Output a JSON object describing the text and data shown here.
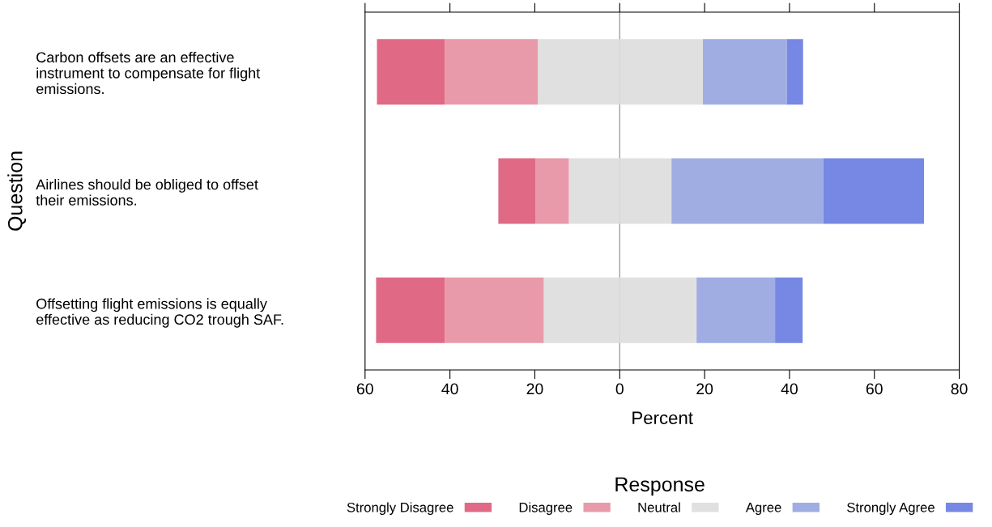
{
  "chart_data": {
    "type": "bar",
    "orientation": "horizontal",
    "stacked": true,
    "categories": [
      "Carbon offsets are an effective instrument to compensate for flight emissions.",
      "Airlines should be obliged to offset their emissions.",
      "Offsetting flight emissions is equally effective as reducing CO2 trough SAF."
    ],
    "series": [
      {
        "color": "#e0e0e0",
        "values": [
          -19.3,
          -12.0,
          -17.9
        ]
      },
      {
        "name": "Disagree",
        "color": "#e89aaa",
        "values": [
          -21.9,
          -7.8,
          -23.3
        ]
      },
      {
        "name": "Strongly Disagree",
        "color": "#e06a85",
        "values": [
          -16.0,
          -8.8,
          -16.2
        ]
      },
      {
        "name": "Neutral",
        "color": "#e0e0e0",
        "values": [
          19.6,
          12.2,
          18.1
        ]
      },
      {
        "name": "Agree",
        "color": "#a0ade3",
        "values": [
          19.8,
          35.8,
          18.5
        ]
      },
      {
        "name": "Strongly Agree",
        "color": "#7688e3",
        "values": [
          3.8,
          23.7,
          6.5
        ]
      }
    ],
    "xlim": [
      -60,
      80
    ],
    "xticks": [
      {
        "value": -60,
        "label": "60"
      },
      {
        "value": -40,
        "label": "40"
      },
      {
        "value": -20,
        "label": "20"
      },
      0,
      20,
      40,
      60,
      80
    ],
    "xlabel": "Percent",
    "ylabel": "Question",
    "legend_title": "Response",
    "legend": "bottom",
    "ref_lines": [
      {
        "axis": "x",
        "value": 0,
        "color": "#a0a0a0"
      }
    ],
    "grid": false
  }
}
